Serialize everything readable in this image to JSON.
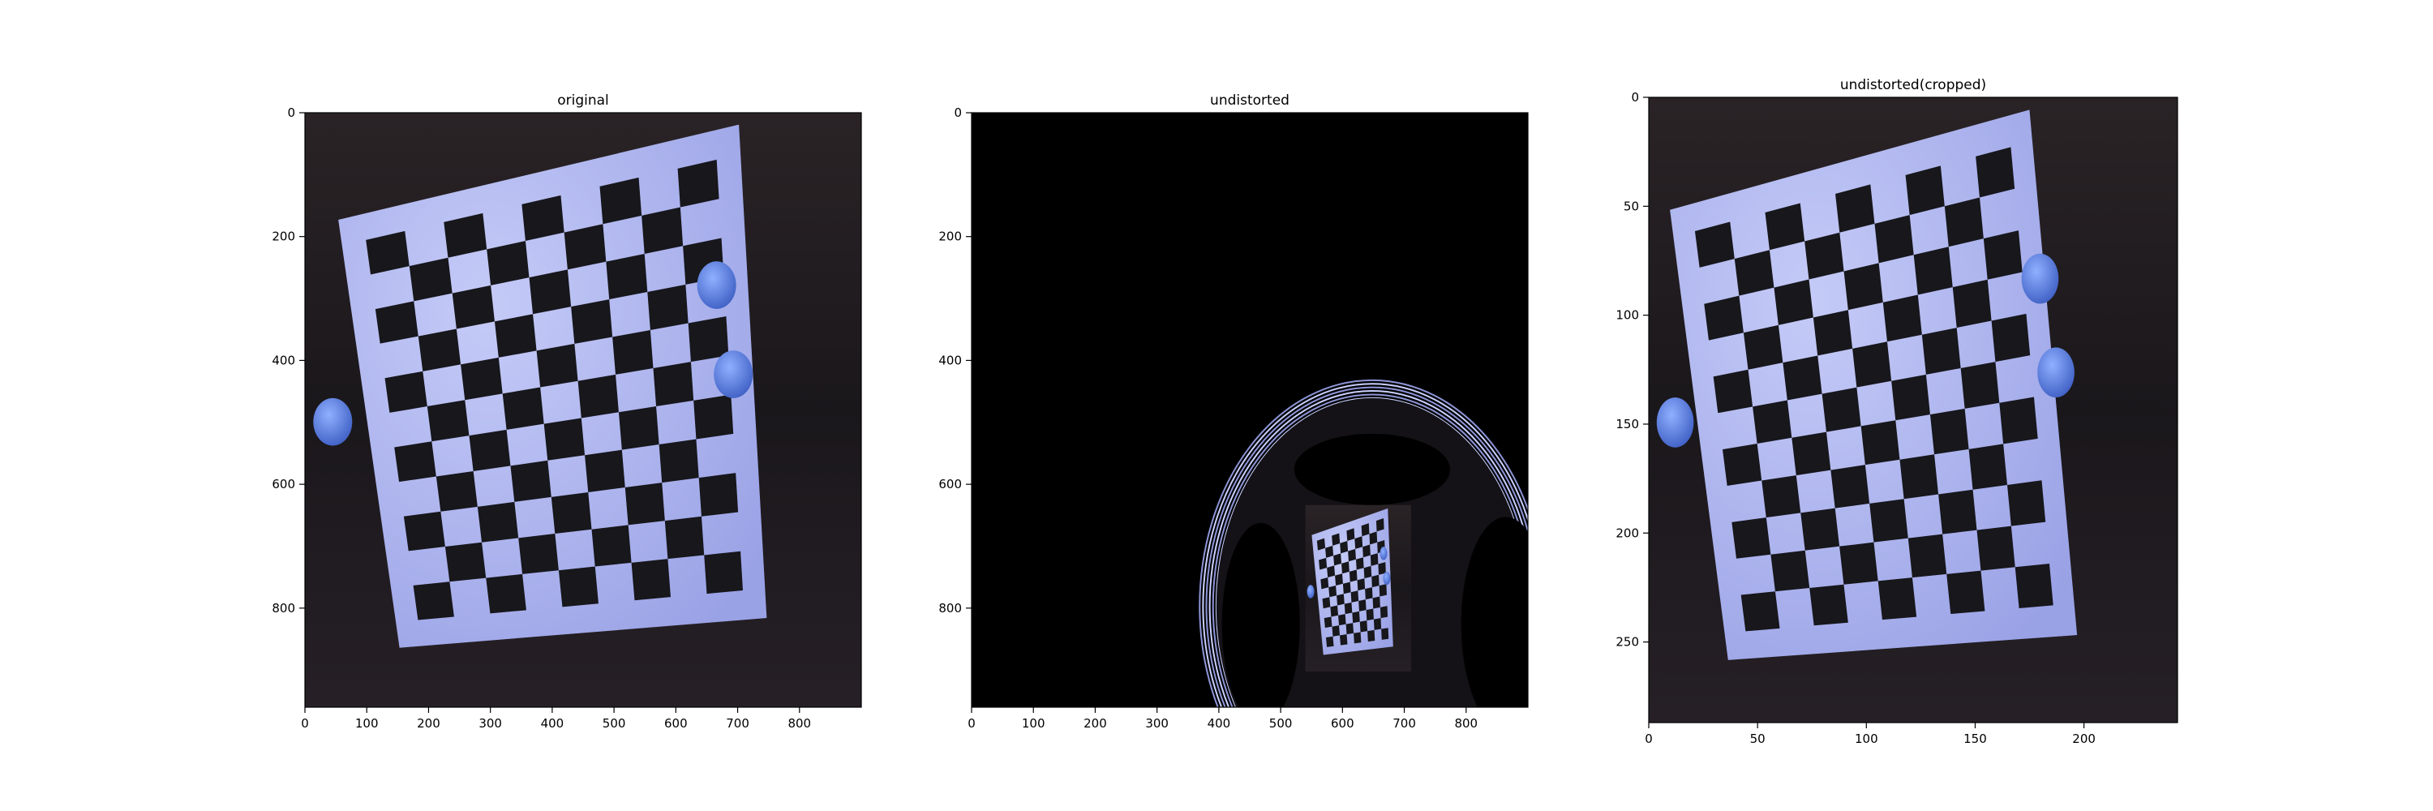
{
  "chart_data": [
    {
      "type": "image",
      "title": "original",
      "xlim": [
        0,
        900
      ],
      "ylim": [
        0,
        960
      ],
      "y_inverted": true,
      "xticks": [
        0,
        100,
        200,
        300,
        400,
        500,
        600,
        700,
        800
      ],
      "yticks": [
        0,
        200,
        400,
        600,
        800
      ],
      "content": "photo of checkerboard calibration target held by hands"
    },
    {
      "type": "image",
      "title": "undistorted",
      "xlim": [
        0,
        900
      ],
      "ylim": [
        0,
        960
      ],
      "y_inverted": true,
      "xticks": [
        0,
        100,
        200,
        300,
        400,
        500,
        600,
        700,
        800
      ],
      "yticks": [
        0,
        200,
        400,
        600,
        800
      ],
      "content": "black canvas with fisheye-undistorted small checkerboard in lower right"
    },
    {
      "type": "image",
      "title": "undistorted(cropped)",
      "xlim": [
        0,
        243
      ],
      "ylim": [
        0,
        287
      ],
      "y_inverted": true,
      "xticks": [
        0,
        50,
        100,
        150,
        200
      ],
      "yticks": [
        0,
        50,
        100,
        150,
        200,
        250
      ],
      "content": "cropped undistorted checkerboard photo"
    }
  ],
  "colors": {
    "board": "#b6bcf0",
    "square": "#17171c",
    "background": "#1d1a1e",
    "glove": "#5a7dd8"
  }
}
